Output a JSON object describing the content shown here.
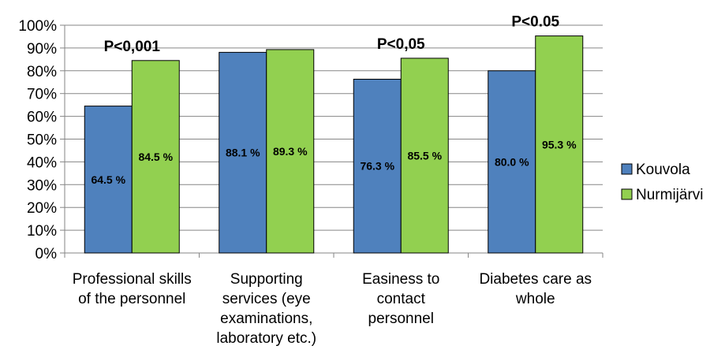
{
  "chart_data": {
    "type": "bar",
    "categories": [
      [
        "Professional skills",
        "of the personnel"
      ],
      [
        "Supporting",
        "services (eye",
        "examinations,",
        "laboratory etc.)"
      ],
      [
        "Easiness to",
        "contact",
        "personnel"
      ],
      [
        "Diabetes care as",
        "whole"
      ]
    ],
    "series": [
      {
        "name": "Kouvola",
        "color": "#4f81bd",
        "values": [
          64.5,
          88.1,
          76.3,
          80.0
        ],
        "labels": [
          "64.5 %",
          "88.1 %",
          "76.3 %",
          "80.0 %"
        ]
      },
      {
        "name": "Nurmijärvi",
        "color": "#92d050",
        "values": [
          84.5,
          89.3,
          85.5,
          95.3
        ],
        "labels": [
          "84.5 %",
          "89.3 %",
          "85.5 %",
          "95.3 %"
        ]
      }
    ],
    "ylim": [
      0,
      100
    ],
    "yticks": [
      "0%",
      "10%",
      "20%",
      "30%",
      "40%",
      "50%",
      "60%",
      "70%",
      "80%",
      "90%",
      "100%"
    ],
    "annotations": [
      {
        "category_index": 0,
        "text": "P<0,001"
      },
      {
        "category_index": 2,
        "text": "P<0,05"
      },
      {
        "category_index": 3,
        "text": "P<0.05"
      }
    ],
    "grid": true,
    "legend_position": "right",
    "title": "",
    "xlabel": "",
    "ylabel": ""
  }
}
